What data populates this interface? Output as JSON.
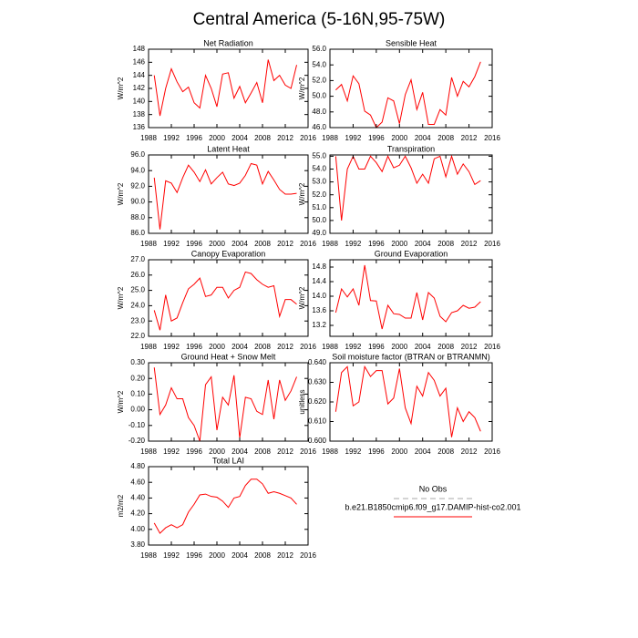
{
  "title": "Central America (5-16N,95-75W)",
  "legend": [
    {
      "name": "No Obs",
      "color": "#aaaaaa",
      "dash": true
    },
    {
      "name": "b.e21.B1850cmip6.f09_g17.DAMIP-hist-co2.001",
      "color": "#ff0000",
      "dash": false
    }
  ],
  "chart_data": [
    {
      "type": "line",
      "title": "Net Radiation",
      "ylabel": "W/m^2",
      "x": [
        1989,
        1990,
        1991,
        1992,
        1993,
        1994,
        1995,
        1996,
        1997,
        1998,
        1999,
        2000,
        2001,
        2002,
        2003,
        2004,
        2005,
        2006,
        2007,
        2008,
        2009,
        2010,
        2011,
        2012,
        2013,
        2014
      ],
      "series": [
        {
          "color": "#ff0000",
          "values": [
            144,
            137.8,
            142,
            145,
            143,
            141.5,
            142.2,
            139.8,
            139,
            144,
            142,
            139.2,
            144.2,
            144.4,
            140.5,
            142.3,
            139.8,
            141.3,
            142.9,
            139.8,
            146.4,
            143.2,
            144,
            142.5,
            142,
            145.6
          ]
        }
      ],
      "xlim": [
        1988,
        2016
      ],
      "xticks": [
        1988,
        1992,
        1996,
        2000,
        2004,
        2008,
        2012,
        2016
      ],
      "ylim": [
        136,
        148
      ],
      "yticks": [
        136,
        138,
        140,
        142,
        144,
        146,
        148
      ]
    },
    {
      "type": "line",
      "title": "Sensible Heat",
      "ylabel": "W/m^2",
      "x": [
        1989,
        1990,
        1991,
        1992,
        1993,
        1994,
        1995,
        1996,
        1997,
        1998,
        1999,
        2000,
        2001,
        2002,
        2003,
        2004,
        2005,
        2006,
        2007,
        2008,
        2009,
        2010,
        2011,
        2012,
        2013,
        2014
      ],
      "series": [
        {
          "color": "#ff0000",
          "values": [
            50.8,
            51.5,
            49.4,
            52.6,
            51.6,
            48.1,
            47.6,
            46.0,
            46.7,
            49.8,
            49.4,
            46.5,
            50.2,
            52.1,
            48.3,
            50.5,
            46.4,
            46.4,
            48.3,
            47.6,
            52.4,
            50.0,
            51.9,
            51.2,
            52.5,
            54.4
          ]
        }
      ],
      "xlim": [
        1988,
        2016
      ],
      "xticks": [
        1988,
        1992,
        1996,
        2000,
        2004,
        2008,
        2012,
        2016
      ],
      "ylim": [
        46,
        56
      ],
      "yticks": [
        {
          "value": 46,
          "label": "46.0"
        },
        {
          "value": 48,
          "label": "48.0"
        },
        {
          "value": 50,
          "label": "50.0"
        },
        {
          "value": 52,
          "label": "52.0"
        },
        {
          "value": 54,
          "label": "54.0"
        },
        {
          "value": 56,
          "label": "56.0"
        }
      ]
    },
    {
      "type": "line",
      "title": "Latent Heat",
      "ylabel": "W/m^2",
      "x": [
        1989,
        1990,
        1991,
        1992,
        1993,
        1994,
        1995,
        1996,
        1997,
        1998,
        1999,
        2000,
        2001,
        2002,
        2003,
        2004,
        2005,
        2006,
        2007,
        2008,
        2009,
        2010,
        2011,
        2012,
        2013,
        2014
      ],
      "series": [
        {
          "color": "#ff0000",
          "values": [
            93.1,
            86.5,
            92.7,
            92.4,
            91.2,
            93.1,
            94.7,
            93.8,
            92.6,
            94.1,
            92.3,
            93.1,
            93.8,
            92.3,
            92.1,
            92.4,
            93.4,
            94.9,
            94.7,
            92.3,
            93.9,
            92.8,
            91.6,
            91.0,
            91.0,
            91.1
          ]
        }
      ],
      "xlim": [
        1988,
        2016
      ],
      "xticks": [
        1988,
        1992,
        1996,
        2000,
        2004,
        2008,
        2012,
        2016
      ],
      "ylim": [
        86,
        96
      ],
      "yticks": [
        {
          "value": 86,
          "label": "86.0"
        },
        {
          "value": 88,
          "label": "88.0"
        },
        {
          "value": 90,
          "label": "90.0"
        },
        {
          "value": 92,
          "label": "92.0"
        },
        {
          "value": 94,
          "label": "94.0"
        },
        {
          "value": 96,
          "label": "96.0"
        }
      ]
    },
    {
      "type": "line",
      "title": "Transpiration",
      "ylabel": "W/m^2",
      "x": [
        1989,
        1990,
        1991,
        1992,
        1993,
        1994,
        1995,
        1996,
        1997,
        1998,
        1999,
        2000,
        2001,
        2002,
        2003,
        2004,
        2005,
        2006,
        2007,
        2008,
        2009,
        2010,
        2011,
        2012,
        2013,
        2014
      ],
      "series": [
        {
          "color": "#ff0000",
          "values": [
            55.0,
            50.0,
            54.0,
            55.0,
            54.0,
            54.0,
            55.0,
            54.5,
            53.8,
            55.0,
            54.1,
            54.3,
            55.0,
            54.1,
            52.9,
            53.6,
            52.9,
            54.8,
            55.0,
            53.4,
            55.0,
            53.6,
            54.4,
            53.8,
            52.8,
            53.1
          ]
        }
      ],
      "xlim": [
        1988,
        2016
      ],
      "xticks": [
        1988,
        1992,
        1996,
        2000,
        2004,
        2008,
        2012,
        2016
      ],
      "ylim": [
        49,
        55.1
      ],
      "yticks": [
        {
          "value": 49,
          "label": "49.0"
        },
        {
          "value": 50,
          "label": "50.0"
        },
        {
          "value": 51,
          "label": "51.0"
        },
        {
          "value": 52,
          "label": "52.0"
        },
        {
          "value": 53,
          "label": "53.0"
        },
        {
          "value": 54,
          "label": "54.0"
        },
        {
          "value": 55,
          "label": "55.0"
        }
      ]
    },
    {
      "type": "line",
      "title": "Canopy Evaporation",
      "ylabel": "W/m^2",
      "x": [
        1989,
        1990,
        1991,
        1992,
        1993,
        1994,
        1995,
        1996,
        1997,
        1998,
        1999,
        2000,
        2001,
        2002,
        2003,
        2004,
        2005,
        2006,
        2007,
        2008,
        2009,
        2010,
        2011,
        2012,
        2013,
        2014
      ],
      "series": [
        {
          "color": "#ff0000",
          "values": [
            23.7,
            22.4,
            24.7,
            23.0,
            23.2,
            24.2,
            25.1,
            25.4,
            25.8,
            24.6,
            24.7,
            25.2,
            25.2,
            24.5,
            25.0,
            25.2,
            26.2,
            26.1,
            25.7,
            25.4,
            25.2,
            25.3,
            23.3,
            24.4,
            24.4,
            24.1
          ]
        }
      ],
      "xlim": [
        1988,
        2016
      ],
      "xticks": [
        1988,
        1992,
        1996,
        2000,
        2004,
        2008,
        2012,
        2016
      ],
      "ylim": [
        22,
        27
      ],
      "yticks": [
        {
          "value": 22,
          "label": "22.0"
        },
        {
          "value": 23,
          "label": "23.0"
        },
        {
          "value": 24,
          "label": "24.0"
        },
        {
          "value": 25,
          "label": "25.0"
        },
        {
          "value": 26,
          "label": "26.0"
        },
        {
          "value": 27,
          "label": "27.0"
        }
      ]
    },
    {
      "type": "line",
      "title": "Ground Evaporation",
      "ylabel": "W/m^2",
      "x": [
        1989,
        1990,
        1991,
        1992,
        1993,
        1994,
        1995,
        1996,
        1997,
        1998,
        1999,
        2000,
        2001,
        2002,
        2003,
        2004,
        2005,
        2006,
        2007,
        2008,
        2009,
        2010,
        2011,
        2012,
        2013,
        2014
      ],
      "series": [
        {
          "color": "#ff0000",
          "values": [
            13.55,
            14.2,
            13.98,
            14.2,
            13.75,
            14.85,
            13.88,
            13.87,
            13.1,
            13.75,
            13.52,
            13.5,
            13.4,
            13.4,
            14.1,
            13.35,
            14.1,
            13.95,
            13.45,
            13.3,
            13.55,
            13.6,
            13.75,
            13.67,
            13.7,
            13.85
          ]
        }
      ],
      "xlim": [
        1988,
        2016
      ],
      "xticks": [
        1988,
        1992,
        1996,
        2000,
        2004,
        2008,
        2012,
        2016
      ],
      "ylim": [
        12.9,
        15.0
      ],
      "yticks": [
        13.2,
        13.6,
        {
          "value": 14,
          "label": "14.0"
        },
        14.4,
        14.8
      ]
    },
    {
      "type": "line",
      "title": "Ground Heat + Snow Melt",
      "ylabel": "W/m^2",
      "x": [
        1989,
        1990,
        1991,
        1992,
        1993,
        1994,
        1995,
        1996,
        1997,
        1998,
        1999,
        2000,
        2001,
        2002,
        2003,
        2004,
        2005,
        2006,
        2007,
        2008,
        2009,
        2010,
        2011,
        2012,
        2013,
        2014
      ],
      "series": [
        {
          "color": "#ff0000",
          "values": [
            0.27,
            -0.03,
            0.03,
            0.14,
            0.07,
            0.07,
            -0.05,
            -0.1,
            -0.2,
            0.16,
            0.21,
            -0.13,
            0.08,
            0.03,
            0.22,
            -0.18,
            0.08,
            0.07,
            -0.01,
            -0.03,
            0.19,
            -0.06,
            0.19,
            0.06,
            0.12,
            0.21
          ]
        }
      ],
      "xlim": [
        1988,
        2016
      ],
      "xticks": [
        1988,
        1992,
        1996,
        2000,
        2004,
        2008,
        2012,
        2016
      ],
      "ylim": [
        -0.2,
        0.3
      ],
      "yticks": [
        {
          "value": -0.2,
          "label": "-0.20"
        },
        {
          "value": -0.1,
          "label": "-0.10"
        },
        {
          "value": 0,
          "label": "0.00"
        },
        {
          "value": 0.1,
          "label": "0.10"
        },
        {
          "value": 0.2,
          "label": "0.20"
        },
        {
          "value": 0.3,
          "label": "0.30"
        }
      ]
    },
    {
      "type": "line",
      "title": "Soil moisture factor (BTRAN or BTRANMN)",
      "ylabel": "unitless",
      "x": [
        1989,
        1990,
        1991,
        1992,
        1993,
        1994,
        1995,
        1996,
        1997,
        1998,
        1999,
        2000,
        2001,
        2002,
        2003,
        2004,
        2005,
        2006,
        2007,
        2008,
        2009,
        2010,
        2011,
        2012,
        2013,
        2014
      ],
      "series": [
        {
          "color": "#ff0000",
          "values": [
            0.615,
            0.635,
            0.638,
            0.618,
            0.62,
            0.638,
            0.633,
            0.636,
            0.636,
            0.619,
            0.622,
            0.637,
            0.617,
            0.609,
            0.628,
            0.623,
            0.635,
            0.631,
            0.623,
            0.627,
            0.602,
            0.617,
            0.61,
            0.615,
            0.612,
            0.605
          ]
        }
      ],
      "xlim": [
        1988,
        2016
      ],
      "xticks": [
        1988,
        1992,
        1996,
        2000,
        2004,
        2008,
        2012,
        2016
      ],
      "ylim": [
        0.6,
        0.64
      ],
      "yticks": [
        {
          "value": 0.6,
          "label": "0.600"
        },
        {
          "value": 0.61,
          "label": "0.610"
        },
        {
          "value": 0.62,
          "label": "0.620"
        },
        {
          "value": 0.63,
          "label": "0.630"
        },
        {
          "value": 0.64,
          "label": "0.640"
        }
      ]
    },
    {
      "type": "line",
      "title": "Total LAI",
      "ylabel": "m2/m2",
      "x": [
        1989,
        1990,
        1991,
        1992,
        1993,
        1994,
        1995,
        1996,
        1997,
        1998,
        1999,
        2000,
        2001,
        2002,
        2003,
        2004,
        2005,
        2006,
        2007,
        2008,
        2009,
        2010,
        2011,
        2012,
        2013,
        2014
      ],
      "series": [
        {
          "color": "#ff0000",
          "values": [
            4.08,
            3.95,
            4.02,
            4.06,
            4.02,
            4.06,
            4.22,
            4.32,
            4.44,
            4.45,
            4.42,
            4.41,
            4.36,
            4.28,
            4.4,
            4.42,
            4.56,
            4.64,
            4.64,
            4.58,
            4.46,
            4.48,
            4.46,
            4.43,
            4.4,
            4.32
          ]
        }
      ],
      "xlim": [
        1988,
        2016
      ],
      "xticks": [
        1988,
        1992,
        1996,
        2000,
        2004,
        2008,
        2012,
        2016
      ],
      "ylim": [
        3.8,
        4.8
      ],
      "yticks": [
        {
          "value": 3.8,
          "label": "3.80"
        },
        {
          "value": 4,
          "label": "4.00"
        },
        {
          "value": 4.2,
          "label": "4.20"
        },
        {
          "value": 4.4,
          "label": "4.40"
        },
        {
          "value": 4.6,
          "label": "4.60"
        },
        {
          "value": 4.8,
          "label": "4.80"
        }
      ]
    }
  ]
}
